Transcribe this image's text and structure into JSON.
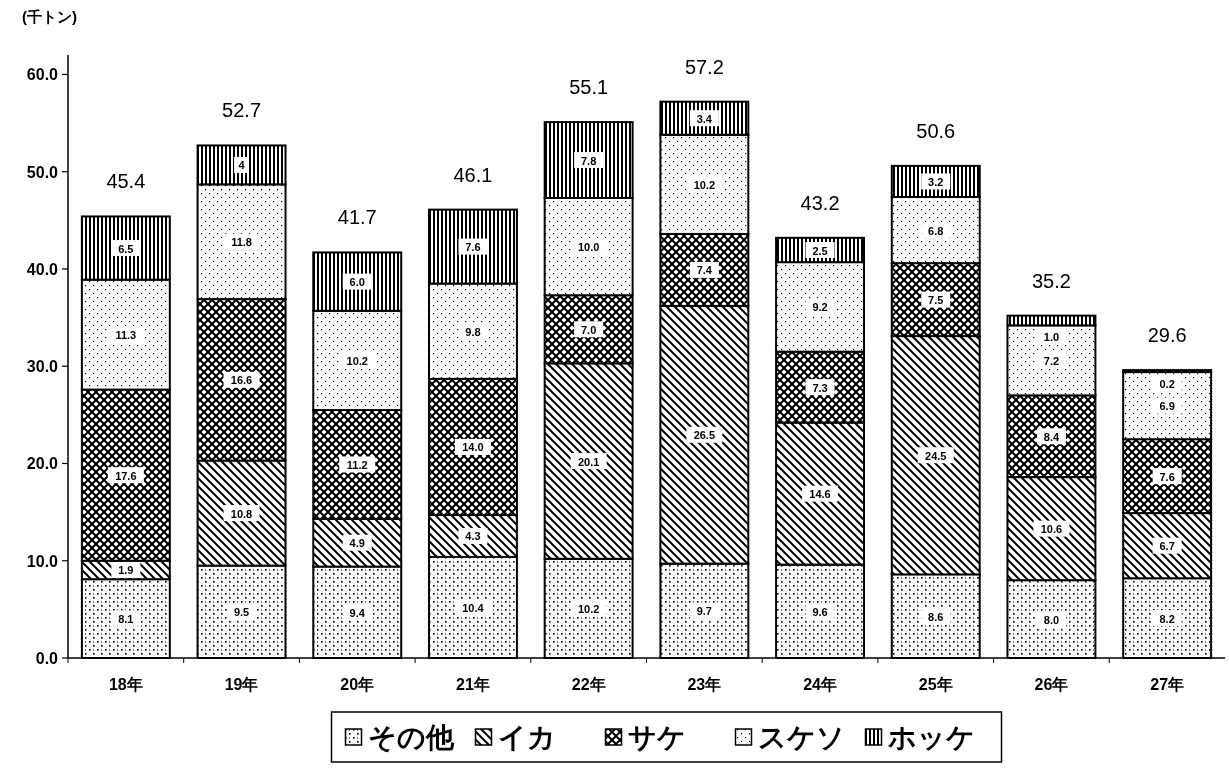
{
  "chart_data": {
    "type": "bar",
    "stacked": true,
    "ylabel": "(千トン)",
    "categories": [
      "18年",
      "19年",
      "20年",
      "21年",
      "22年",
      "23年",
      "24年",
      "25年",
      "26年",
      "27年"
    ],
    "series": [
      {
        "name": "その他",
        "color": "#000000",
        "values": [
          8.1,
          9.5,
          9.4,
          10.4,
          10.2,
          9.7,
          9.6,
          8.6,
          8.0,
          8.2
        ],
        "value_labels": [
          "8.1",
          "9.5",
          "9.4",
          "10.4",
          "10.2",
          "9.7",
          "9.6",
          "8.6",
          "8.0",
          "8.2"
        ]
      },
      {
        "name": "イカ",
        "color": "#000000",
        "values": [
          1.9,
          10.8,
          4.9,
          4.3,
          20.1,
          26.5,
          14.6,
          24.5,
          10.6,
          6.7
        ],
        "value_labels": [
          "1.9",
          "10.8",
          "4.9",
          "4.3",
          "20.1",
          "26.5",
          "14.6",
          "24.5",
          "10.6",
          "6.7"
        ]
      },
      {
        "name": "サケ",
        "color": "#000000",
        "values": [
          17.6,
          16.6,
          11.2,
          14.0,
          7.0,
          7.4,
          7.3,
          7.5,
          8.4,
          7.6
        ],
        "value_labels": [
          "17.6",
          "16.6",
          "11.2",
          "14.0",
          "7.0",
          "7.4",
          "7.3",
          "7.5",
          "8.4",
          "7.6"
        ]
      },
      {
        "name": "スケソ",
        "color": "#000000",
        "values": [
          11.3,
          11.8,
          10.2,
          9.8,
          10.0,
          10.2,
          9.2,
          6.8,
          7.2,
          6.9
        ],
        "value_labels": [
          "11.3",
          "11.8",
          "10.2",
          "9.8",
          "10.0",
          "10.2",
          "9.2",
          "6.8",
          "7.2",
          "6.9"
        ]
      },
      {
        "name": "ホッケ",
        "color": "#000000",
        "values": [
          6.5,
          4,
          6.0,
          7.6,
          7.8,
          3.4,
          2.5,
          3.2,
          1.0,
          0.2
        ],
        "value_labels": [
          "6.5",
          "4",
          "6.0",
          "7.6",
          "7.8",
          "3.4",
          "2.5",
          "3.2",
          "1.0",
          "0.2"
        ]
      }
    ],
    "totals": [
      "45.4",
      "52.7",
      "41.7",
      "46.1",
      "55.1",
      "57.2",
      "43.2",
      "50.6",
      "35.2",
      "29.6"
    ],
    "ylim": [
      0,
      62
    ],
    "yticks": [
      {
        "value": 0,
        "label": "0.0"
      },
      {
        "value": 10,
        "label": "10.0"
      },
      {
        "value": 20,
        "label": "20.0"
      },
      {
        "value": 30,
        "label": "30.0"
      },
      {
        "value": 40,
        "label": "40.0"
      },
      {
        "value": 50,
        "label": "50.0"
      },
      {
        "value": 60,
        "label": "60.0"
      }
    ],
    "legend": "bottom"
  }
}
